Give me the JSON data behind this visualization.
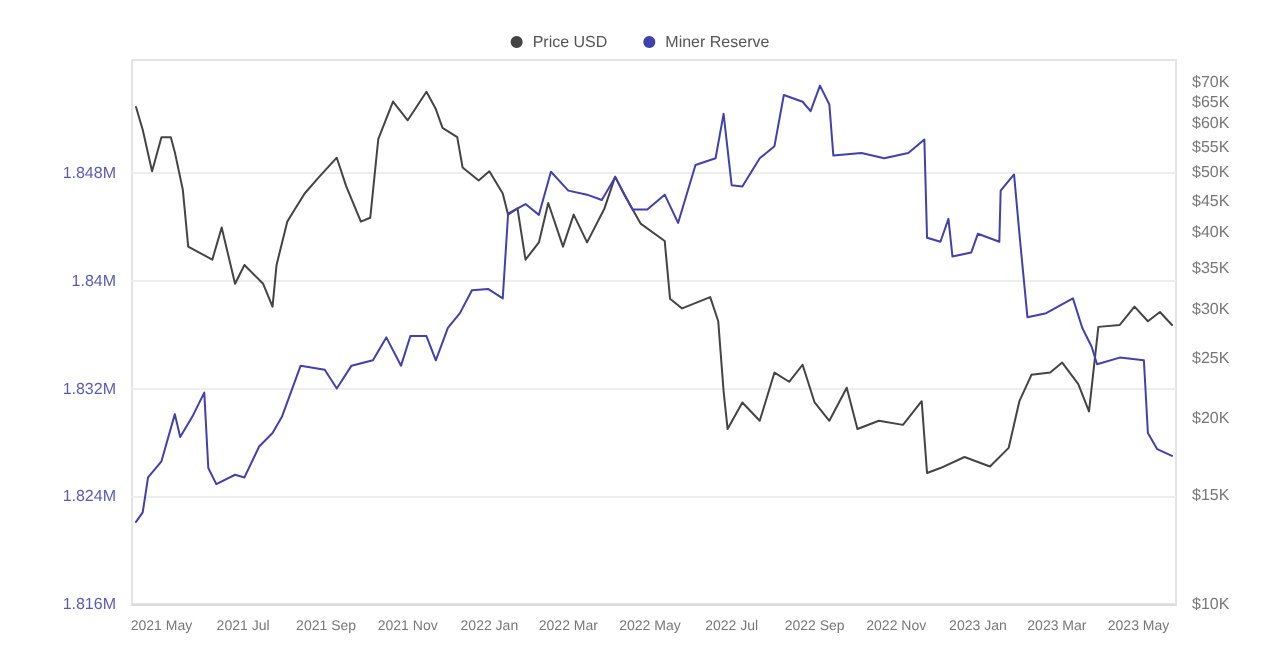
{
  "chart_data": {
    "type": "line",
    "legend": "top",
    "grid": "y",
    "log": "y2",
    "xlim": [
      "2021-04-09",
      "2023-05-29"
    ],
    "xticks": [
      {
        "value": "2021-05-01",
        "label": "2021 May"
      },
      {
        "value": "2021-07-01",
        "label": "2021 Jul"
      },
      {
        "value": "2021-09-01",
        "label": "2021 Sep"
      },
      {
        "value": "2021-11-01",
        "label": "2021 Nov"
      },
      {
        "value": "2022-01-01",
        "label": "2022 Jan"
      },
      {
        "value": "2022-03-01",
        "label": "2022 Mar"
      },
      {
        "value": "2022-05-01",
        "label": "2022 May"
      },
      {
        "value": "2022-07-01",
        "label": "2022 Jul"
      },
      {
        "value": "2022-09-01",
        "label": "2022 Sep"
      },
      {
        "value": "2022-11-01",
        "label": "2022 Nov"
      },
      {
        "value": "2023-01-01",
        "label": "2023 Jan"
      },
      {
        "value": "2023-03-01",
        "label": "2023 Mar"
      },
      {
        "value": "2023-05-01",
        "label": "2023 May"
      }
    ],
    "ylim": [
      1.816,
      1.8564
    ],
    "yticks": [
      {
        "value": 1.816,
        "label": "1.816M"
      },
      {
        "value": 1.824,
        "label": "1.824M"
      },
      {
        "value": 1.832,
        "label": "1.832M"
      },
      {
        "value": 1.84,
        "label": "1.84M"
      },
      {
        "value": 1.848,
        "label": "1.848M"
      }
    ],
    "y2lim": [
      10000,
      76000
    ],
    "y2ticks": [
      {
        "value": 10000,
        "label": "$10K"
      },
      {
        "value": 15000,
        "label": "$15K"
      },
      {
        "value": 20000,
        "label": "$20K"
      },
      {
        "value": 25000,
        "label": "$25K"
      },
      {
        "value": 30000,
        "label": "$30K"
      },
      {
        "value": 35000,
        "label": "$35K"
      },
      {
        "value": 40000,
        "label": "$40K"
      },
      {
        "value": 45000,
        "label": "$45K"
      },
      {
        "value": 50000,
        "label": "$50K"
      },
      {
        "value": 55000,
        "label": "$55K"
      },
      {
        "value": 60000,
        "label": "$60K"
      },
      {
        "value": 65000,
        "label": "$65K"
      },
      {
        "value": 70000,
        "label": "$70K"
      }
    ],
    "series": [
      {
        "name": "Price USD",
        "color": "#444444",
        "axis": "y2",
        "x": [
          "2021-04-12",
          "2021-04-17",
          "2021-04-24",
          "2021-05-01",
          "2021-05-08",
          "2021-05-11",
          "2021-05-17",
          "2021-05-21",
          "2021-06-08",
          "2021-06-15",
          "2021-06-25",
          "2021-07-02",
          "2021-07-16",
          "2021-07-23",
          "2021-07-26",
          "2021-08-03",
          "2021-08-09",
          "2021-08-16",
          "2021-08-27",
          "2021-09-09",
          "2021-09-16",
          "2021-09-27",
          "2021-10-04",
          "2021-10-10",
          "2021-10-21",
          "2021-11-01",
          "2021-11-15",
          "2021-11-22",
          "2021-11-27",
          "2021-12-08",
          "2021-12-12",
          "2021-12-24",
          "2022-01-01",
          "2022-01-11",
          "2022-01-15",
          "2022-01-22",
          "2022-01-28",
          "2022-02-07",
          "2022-02-14",
          "2022-02-25",
          "2022-03-05",
          "2022-03-15",
          "2022-03-28",
          "2022-04-05",
          "2022-04-12",
          "2022-04-24",
          "2022-05-12",
          "2022-05-16",
          "2022-05-25",
          "2022-06-15",
          "2022-06-21",
          "2022-06-25",
          "2022-06-28",
          "2022-07-09",
          "2022-07-22",
          "2022-08-02",
          "2022-08-13",
          "2022-08-23",
          "2022-09-01",
          "2022-09-12",
          "2022-09-25",
          "2022-10-03",
          "2022-10-19",
          "2022-11-06",
          "2022-11-20",
          "2022-11-24",
          "2022-12-04",
          "2022-12-22",
          "2023-01-10",
          "2023-01-24",
          "2023-02-01",
          "2023-02-10",
          "2023-02-24",
          "2023-03-05",
          "2023-03-17",
          "2023-03-25",
          "2023-04-01",
          "2023-04-17",
          "2023-04-28",
          "2023-05-08",
          "2023-05-17",
          "2023-05-26"
        ],
        "values": [
          63800,
          58600,
          50200,
          57000,
          57000,
          53900,
          46800,
          37900,
          36100,
          40700,
          33000,
          35400,
          33000,
          30300,
          35400,
          41600,
          43700,
          46200,
          49200,
          52800,
          47500,
          41600,
          42200,
          56600,
          65100,
          60700,
          67500,
          63300,
          59000,
          57000,
          50900,
          48500,
          50200,
          46200,
          42700,
          43700,
          36100,
          38500,
          44600,
          37900,
          42700,
          38500,
          43700,
          49200,
          45900,
          41300,
          38700,
          31200,
          30100,
          31400,
          28700,
          22100,
          19200,
          21200,
          19800,
          23700,
          22900,
          24400,
          21200,
          19800,
          22400,
          19200,
          19800,
          19500,
          21300,
          16300,
          16600,
          17300,
          16700,
          17900,
          21300,
          23500,
          23700,
          24600,
          22700,
          20500,
          28100,
          28300,
          30300,
          28700,
          29700,
          28300
        ]
      },
      {
        "name": "Miner Reserve",
        "color": "#4040b0",
        "x": [
          "2021-04-12",
          "2021-04-17",
          "2021-04-21",
          "2021-05-01",
          "2021-05-11",
          "2021-05-15",
          "2021-05-24",
          "2021-06-02",
          "2021-06-05",
          "2021-06-11",
          "2021-06-25",
          "2021-07-02",
          "2021-07-13",
          "2021-07-23",
          "2021-07-30",
          "2021-08-13",
          "2021-08-31",
          "2021-09-09",
          "2021-09-20",
          "2021-10-06",
          "2021-10-16",
          "2021-10-27",
          "2021-11-03",
          "2021-11-15",
          "2021-11-22",
          "2021-12-01",
          "2021-12-10",
          "2021-12-19",
          "2021-12-31",
          "2022-01-11",
          "2022-01-15",
          "2022-01-28",
          "2022-02-07",
          "2022-02-16",
          "2022-03-01",
          "2022-03-15",
          "2022-03-26",
          "2022-04-05",
          "2022-04-18",
          "2022-04-29",
          "2022-05-12",
          "2022-05-22",
          "2022-06-04",
          "2022-06-19",
          "2022-06-25",
          "2022-07-01",
          "2022-07-09",
          "2022-07-22",
          "2022-08-02",
          "2022-08-09",
          "2022-08-23",
          "2022-08-29",
          "2022-09-05",
          "2022-09-12",
          "2022-09-15",
          "2022-10-06",
          "2022-10-23",
          "2022-11-10",
          "2022-11-22",
          "2022-11-24",
          "2022-12-04",
          "2022-12-10",
          "2022-12-13",
          "2022-12-27",
          "2023-01-01",
          "2023-01-17",
          "2023-01-18",
          "2023-01-28",
          "2023-02-01",
          "2023-02-07",
          "2023-02-21",
          "2023-03-13",
          "2023-03-20",
          "2023-03-27",
          "2023-03-31",
          "2023-04-17",
          "2023-05-05",
          "2023-05-08",
          "2023-05-15",
          "2023-05-26"
        ],
        "values": [
          1.8221,
          1.8228,
          1.8254,
          1.8266,
          1.8301,
          1.8284,
          1.8299,
          1.8317,
          1.8261,
          1.8249,
          1.8256,
          1.8254,
          1.8277,
          1.8287,
          1.8299,
          1.8337,
          1.8334,
          1.832,
          1.8337,
          1.8341,
          1.8358,
          1.8337,
          1.8359,
          1.8359,
          1.8341,
          1.8365,
          1.8376,
          1.8393,
          1.8394,
          1.8387,
          1.845,
          1.8457,
          1.8449,
          1.8481,
          1.8467,
          1.8464,
          1.846,
          1.8477,
          1.8453,
          1.8453,
          1.8464,
          1.8443,
          1.8486,
          1.8491,
          1.8524,
          1.8471,
          1.847,
          1.8491,
          1.85,
          1.8538,
          1.8533,
          1.8526,
          1.8545,
          1.8531,
          1.8493,
          1.8495,
          1.8491,
          1.8495,
          1.8505,
          1.8432,
          1.8429,
          1.8446,
          1.8418,
          1.8421,
          1.8435,
          1.8429,
          1.8467,
          1.8479,
          1.8435,
          1.8373,
          1.8376,
          1.8387,
          1.8365,
          1.8351,
          1.8338,
          1.8343,
          1.8341,
          1.8287,
          1.8275,
          1.827
        ]
      }
    ]
  }
}
